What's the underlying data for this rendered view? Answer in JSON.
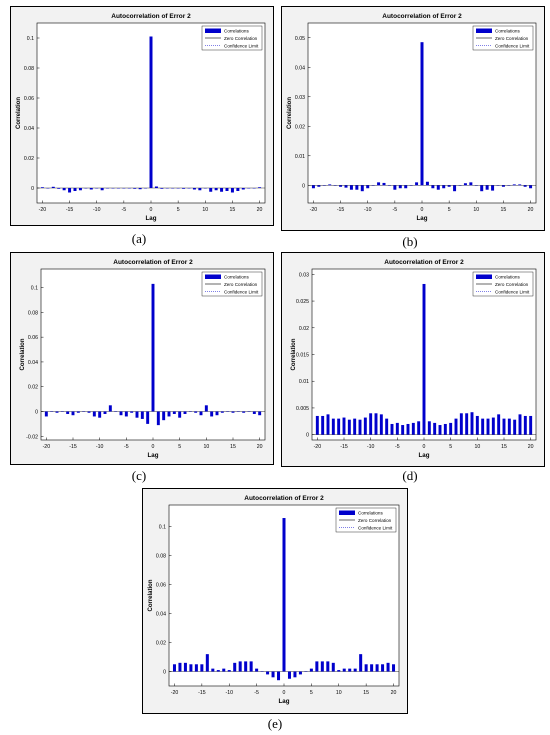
{
  "chart_data": [
    {
      "type": "bar",
      "panel_label": "(a)",
      "title": "Autocorrelation of Error 2",
      "xlabel": "Lag",
      "ylabel": "Correlation",
      "xlim": [
        -21,
        21
      ],
      "ylim": [
        -0.01,
        0.11
      ],
      "yticks": [
        0,
        0.02,
        0.04,
        0.06,
        0.08,
        0.1
      ],
      "yticklabels": [
        "0",
        "0.02",
        "0.04",
        "0.06",
        "0.08",
        "0.1"
      ],
      "xticks": [
        -20,
        -15,
        -10,
        -5,
        0,
        5,
        10,
        15,
        20
      ],
      "legend": [
        "Correlations",
        "Zero Correlation",
        "Confidence Limit"
      ],
      "legend_position": "top-right",
      "lags": [
        -20,
        -19,
        -18,
        -17,
        -16,
        -15,
        -14,
        -13,
        -12,
        -11,
        -10,
        -9,
        -8,
        -7,
        -6,
        -5,
        -4,
        -3,
        -2,
        -1,
        0,
        1,
        2,
        3,
        4,
        5,
        6,
        7,
        8,
        9,
        10,
        11,
        12,
        13,
        14,
        15,
        16,
        17,
        18,
        19,
        20
      ],
      "values": [
        0.0005,
        0,
        0.0008,
        -0.0005,
        -0.0015,
        -0.003,
        -0.002,
        -0.0015,
        0,
        -0.001,
        0,
        -0.0015,
        0,
        0,
        0,
        0,
        0,
        -0.0005,
        -0.0008,
        0,
        0.101,
        0.001,
        -0.0005,
        0,
        0,
        0,
        -0.0005,
        0,
        -0.001,
        -0.0015,
        0,
        -0.0025,
        -0.0015,
        -0.0025,
        -0.002,
        -0.003,
        -0.002,
        -0.001,
        0,
        0,
        0.0005
      ]
    },
    {
      "type": "bar",
      "panel_label": "(b)",
      "title": "Autocorrelation of Error 2",
      "xlabel": "Lag",
      "ylabel": "Correlation",
      "xlim": [
        -21,
        21
      ],
      "ylim": [
        -0.006,
        0.055
      ],
      "yticks": [
        0,
        0.01,
        0.02,
        0.03,
        0.04,
        0.05
      ],
      "yticklabels": [
        "0",
        "0.01",
        "0.02",
        "0.03",
        "0.04",
        "0.05"
      ],
      "xticks": [
        -20,
        -15,
        -10,
        -5,
        0,
        5,
        10,
        15,
        20
      ],
      "legend": [
        "Correlations",
        "Zero Correlation",
        "Confidence Limit"
      ],
      "legend_position": "top-right",
      "lags": [
        -20,
        -19,
        -18,
        -17,
        -16,
        -15,
        -14,
        -13,
        -12,
        -11,
        -10,
        -9,
        -8,
        -7,
        -6,
        -5,
        -4,
        -3,
        -2,
        -1,
        0,
        1,
        2,
        3,
        4,
        5,
        6,
        7,
        8,
        9,
        10,
        11,
        12,
        13,
        14,
        15,
        16,
        17,
        18,
        19,
        20
      ],
      "values": [
        -0.001,
        -0.0005,
        0,
        0.0003,
        0,
        -0.0005,
        -0.0008,
        -0.0015,
        -0.0015,
        -0.002,
        -0.001,
        0,
        0.001,
        0.0008,
        0,
        -0.0015,
        -0.001,
        -0.001,
        0,
        0.001,
        0.0485,
        0.0012,
        -0.001,
        -0.0015,
        -0.001,
        -0.0005,
        -0.002,
        0,
        0.0007,
        0.001,
        0,
        -0.002,
        -0.0015,
        -0.0018,
        0,
        -0.0005,
        0,
        0.0003,
        0.0003,
        -0.0005,
        -0.001
      ]
    },
    {
      "type": "bar",
      "panel_label": "(c)",
      "title": "Autocorrelation of Error 2",
      "xlabel": "Lag",
      "ylabel": "Correlation",
      "xlim": [
        -21,
        21
      ],
      "ylim": [
        -0.023,
        0.115
      ],
      "yticks": [
        -0.02,
        0,
        0.02,
        0.04,
        0.06,
        0.08,
        0.1
      ],
      "yticklabels": [
        "-0.02",
        "0",
        "0.02",
        "0.04",
        "0.06",
        "0.08",
        "0.1"
      ],
      "xticks": [
        -20,
        -15,
        -10,
        -5,
        0,
        5,
        10,
        15,
        20
      ],
      "legend": [
        "Correlations",
        "Zero Correlation",
        "Confidence Limit"
      ],
      "legend_position": "top-right",
      "lags": [
        -20,
        -19,
        -18,
        -17,
        -16,
        -15,
        -14,
        -13,
        -12,
        -11,
        -10,
        -9,
        -8,
        -7,
        -6,
        -5,
        -4,
        -3,
        -2,
        -1,
        0,
        1,
        2,
        3,
        4,
        5,
        6,
        7,
        8,
        9,
        10,
        11,
        12,
        13,
        14,
        15,
        16,
        17,
        18,
        19,
        20
      ],
      "values": [
        -0.004,
        0,
        -0.001,
        0,
        -0.002,
        -0.003,
        -0.001,
        0,
        -0.001,
        -0.004,
        -0.005,
        -0.002,
        0.005,
        0,
        -0.003,
        -0.004,
        -0.001,
        -0.005,
        -0.006,
        -0.01,
        0.103,
        -0.011,
        -0.007,
        -0.004,
        -0.002,
        -0.005,
        -0.002,
        0,
        -0.001,
        -0.003,
        0.005,
        -0.004,
        -0.003,
        -0.001,
        0,
        -0.001,
        0,
        -0.001,
        0,
        -0.002,
        -0.003
      ]
    },
    {
      "type": "bar",
      "panel_label": "(d)",
      "title": "Autocorrelation of Error 2",
      "xlabel": "Lag",
      "ylabel": "Correlation",
      "xlim": [
        -21,
        21
      ],
      "ylim": [
        -0.001,
        0.031
      ],
      "yticks": [
        0,
        0.005,
        0.01,
        0.015,
        0.02,
        0.025,
        0.03
      ],
      "yticklabels": [
        "0",
        "0.005",
        "0.01",
        "0.015",
        "0.02",
        "0.025",
        "0.03"
      ],
      "xticks": [
        -20,
        -15,
        -10,
        -5,
        0,
        5,
        10,
        15,
        20
      ],
      "legend": [
        "Correlations",
        "Zero Correlation",
        "Confidence Limit"
      ],
      "legend_position": "top-right",
      "lags": [
        -20,
        -19,
        -18,
        -17,
        -16,
        -15,
        -14,
        -13,
        -12,
        -11,
        -10,
        -9,
        -8,
        -7,
        -6,
        -5,
        -4,
        -3,
        -2,
        -1,
        0,
        1,
        2,
        3,
        4,
        5,
        6,
        7,
        8,
        9,
        10,
        11,
        12,
        13,
        14,
        15,
        16,
        17,
        18,
        19,
        20
      ],
      "values": [
        0.0035,
        0.0035,
        0.0038,
        0.003,
        0.003,
        0.0032,
        0.0028,
        0.003,
        0.0028,
        0.0032,
        0.004,
        0.004,
        0.0038,
        0.003,
        0.002,
        0.0022,
        0.0018,
        0.002,
        0.0022,
        0.0025,
        0.0282,
        0.0025,
        0.0022,
        0.0018,
        0.002,
        0.0022,
        0.003,
        0.004,
        0.004,
        0.0042,
        0.0035,
        0.003,
        0.003,
        0.0032,
        0.0038,
        0.003,
        0.003,
        0.0028,
        0.0038,
        0.0035,
        0.0035
      ]
    },
    {
      "type": "bar",
      "panel_label": "(e)",
      "title": "Autocorrelation of Error 2",
      "xlabel": "Lag",
      "ylabel": "Correlation",
      "xlim": [
        -21,
        21
      ],
      "ylim": [
        -0.01,
        0.115
      ],
      "yticks": [
        0,
        0.02,
        0.04,
        0.06,
        0.08,
        0.1
      ],
      "yticklabels": [
        "0",
        "0.02",
        "0.04",
        "0.06",
        "0.08",
        "0.1"
      ],
      "xticks": [
        -20,
        -15,
        -10,
        -5,
        0,
        5,
        10,
        15,
        20
      ],
      "legend": [
        "Correlations",
        "Zero Correlation",
        "Confidence Limit"
      ],
      "legend_position": "top-right",
      "lags": [
        -20,
        -19,
        -18,
        -17,
        -16,
        -15,
        -14,
        -13,
        -12,
        -11,
        -10,
        -9,
        -8,
        -7,
        -6,
        -5,
        -4,
        -3,
        -2,
        -1,
        0,
        1,
        2,
        3,
        4,
        5,
        6,
        7,
        8,
        9,
        10,
        11,
        12,
        13,
        14,
        15,
        16,
        17,
        18,
        19,
        20
      ],
      "values": [
        0.005,
        0.006,
        0.006,
        0.005,
        0.005,
        0.005,
        0.012,
        0.002,
        0.001,
        0.002,
        0.001,
        0.006,
        0.007,
        0.007,
        0.007,
        0.002,
        0,
        -0.002,
        -0.004,
        -0.006,
        0.106,
        -0.005,
        -0.004,
        -0.002,
        0,
        0.002,
        0.007,
        0.007,
        0.007,
        0.006,
        0.001,
        0.002,
        0.002,
        0.002,
        0.012,
        0.005,
        0.005,
        0.005,
        0.005,
        0.006,
        0.005
      ]
    }
  ]
}
